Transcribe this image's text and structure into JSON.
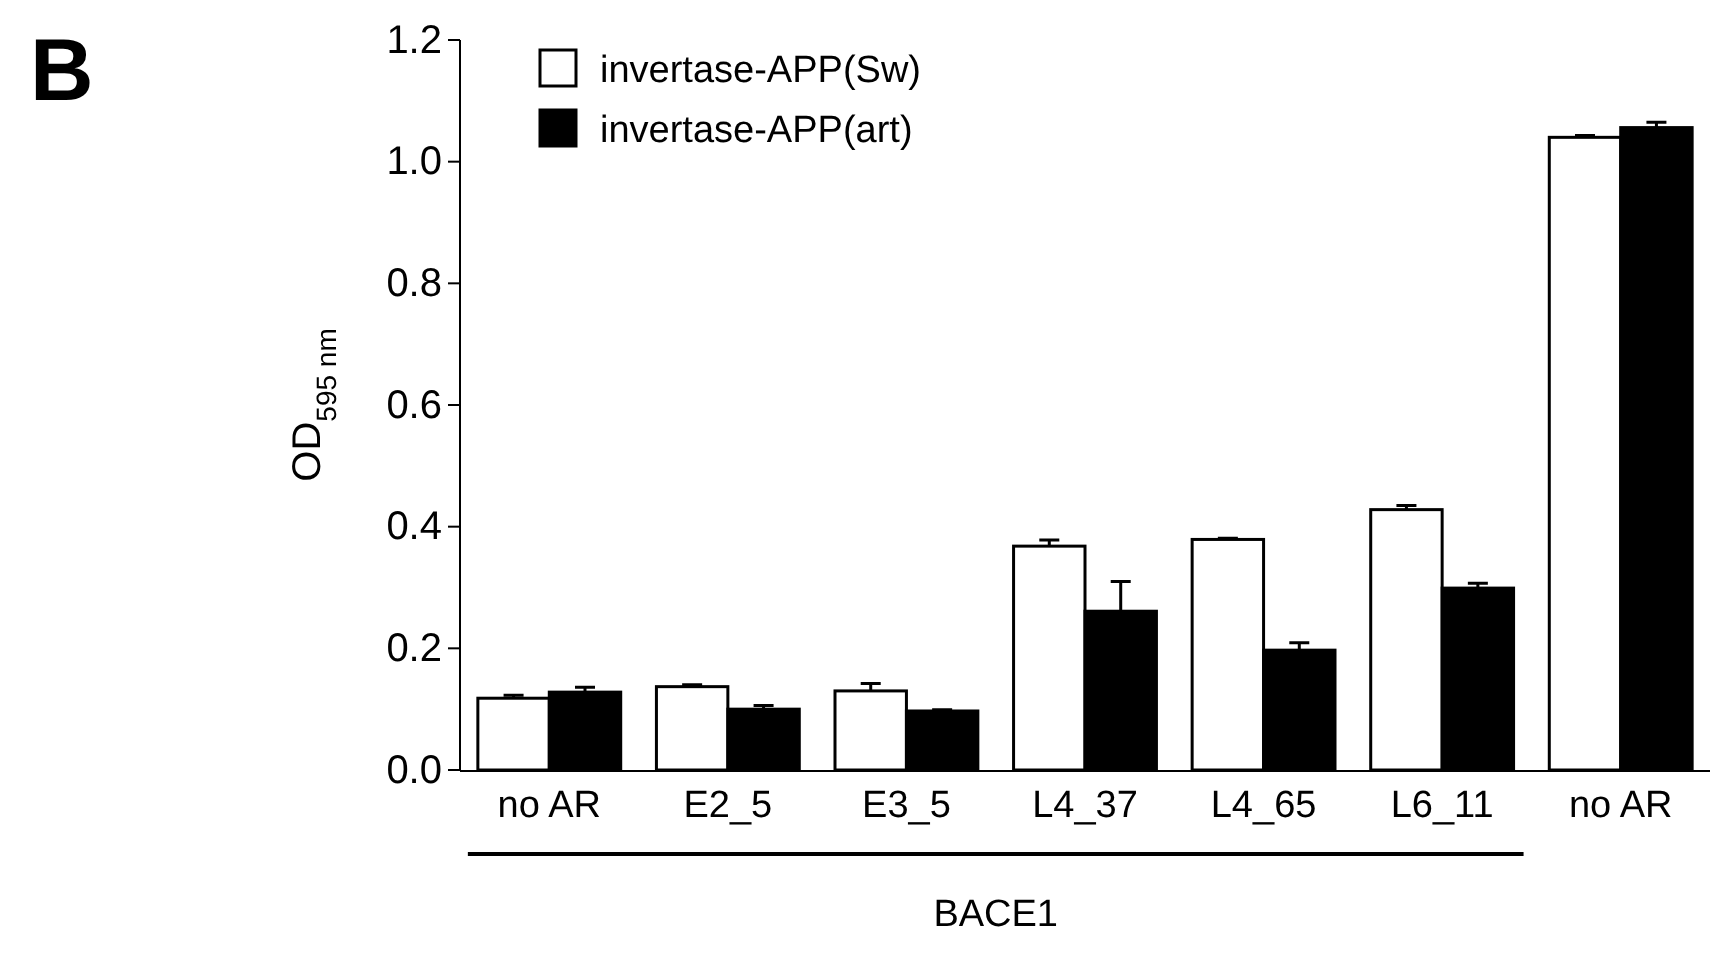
{
  "chart_data": {
    "type": "bar",
    "ylabel": "OD$_{595 nm}$",
    "categories": [
      "no AR",
      "E2_5",
      "E3_5",
      "L4_37",
      "L4_65",
      "L6_11",
      "no AR"
    ],
    "series": [
      {
        "name": "invertase-APP(Sw)",
        "color": "#ffffff",
        "values": [
          0.118,
          0.137,
          0.13,
          0.368,
          0.379,
          0.428,
          1.04
        ],
        "errors": [
          0.005,
          0.003,
          0.012,
          0.01,
          0.002,
          0.007,
          0.003
        ]
      },
      {
        "name": "invertase-APP(art)",
        "color": "#000000",
        "values": [
          0.128,
          0.1,
          0.097,
          0.261,
          0.197,
          0.299,
          1.056
        ],
        "errors": [
          0.008,
          0.006,
          0.002,
          0.049,
          0.012,
          0.008,
          0.009
        ]
      }
    ],
    "ylim": [
      0,
      1.2
    ],
    "yticks": [
      {
        "value": 0,
        "label": "0.0"
      },
      {
        "value": 0.2,
        "label": "0.2"
      },
      {
        "value": 0.4,
        "label": "0.4"
      },
      {
        "value": 0.6,
        "label": "0.6"
      },
      {
        "value": 0.8,
        "label": "0.8"
      },
      {
        "value": 1,
        "label": "1.0"
      },
      {
        "value": 1.2,
        "label": "1.2"
      }
    ],
    "legend": "top left",
    "grid": false,
    "annotations": [
      "B",
      "BACE1"
    ]
  }
}
